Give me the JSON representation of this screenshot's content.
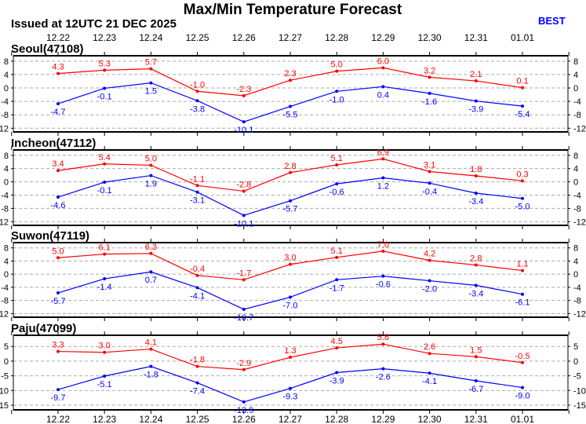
{
  "title": "Max/Min Temperature Forecast",
  "issued": "Issued at 12UTC 21 DEC 2025",
  "model": "BEST",
  "colors": {
    "max": "#ff0000",
    "min": "#0000ff",
    "model": "#0000ff"
  },
  "chart_data": [
    {
      "type": "line",
      "title": "Seoul(47108)",
      "categories": [
        "12.22",
        "12.23",
        "12.24",
        "12.25",
        "12.26",
        "12.27",
        "12.28",
        "12.29",
        "12.30",
        "12.31",
        "01.01"
      ],
      "yticks": [
        "8",
        "4",
        "0",
        "-4",
        "-8",
        "-12"
      ],
      "ylim": [
        -13.1,
        9.6
      ],
      "grid": true,
      "series": [
        {
          "name": "max",
          "values": [
            4.3,
            5.3,
            5.7,
            -1.0,
            -2.3,
            2.3,
            5.0,
            6.0,
            3.2,
            2.1,
            0.1
          ]
        },
        {
          "name": "min",
          "values": [
            -4.7,
            -0.1,
            1.5,
            -3.8,
            -10.1,
            -5.5,
            -1.0,
            0.4,
            -1.6,
            -3.9,
            -5.4
          ]
        }
      ]
    },
    {
      "type": "line",
      "title": "Incheon(47112)",
      "categories": [
        "12.22",
        "12.23",
        "12.24",
        "12.25",
        "12.26",
        "12.27",
        "12.28",
        "12.29",
        "12.30",
        "12.31",
        "01.01"
      ],
      "yticks": [
        "8",
        "4",
        "0",
        "-4",
        "-8",
        "-12"
      ],
      "ylim": [
        -13.1,
        9.6
      ],
      "grid": true,
      "series": [
        {
          "name": "max",
          "values": [
            3.4,
            5.4,
            5.0,
            -1.1,
            -2.8,
            2.8,
            5.1,
            6.9,
            3.1,
            1.8,
            0.3
          ]
        },
        {
          "name": "min",
          "values": [
            -4.6,
            -0.1,
            1.9,
            -3.1,
            -10.1,
            -5.7,
            -0.6,
            1.2,
            -0.4,
            -3.4,
            -5.0
          ]
        }
      ]
    },
    {
      "type": "line",
      "title": "Suwon(47119)",
      "categories": [
        "12.22",
        "12.23",
        "12.24",
        "12.25",
        "12.26",
        "12.27",
        "12.28",
        "12.29",
        "12.30",
        "12.31",
        "01.01"
      ],
      "yticks": [
        "8",
        "4",
        "0",
        "-4",
        "-8",
        "-12"
      ],
      "ylim": [
        -13.1,
        9.6
      ],
      "grid": true,
      "series": [
        {
          "name": "max",
          "values": [
            5.0,
            6.1,
            6.3,
            -0.4,
            -1.7,
            3.0,
            5.1,
            7.0,
            4.2,
            2.8,
            1.1
          ]
        },
        {
          "name": "min",
          "values": [
            -5.7,
            -1.4,
            0.7,
            -4.1,
            -10.7,
            -7.0,
            -1.7,
            -0.6,
            -2.0,
            -3.4,
            -6.1
          ]
        }
      ]
    },
    {
      "type": "line",
      "title": "Paju(47099)",
      "categories": [
        "12.22",
        "12.23",
        "12.24",
        "12.25",
        "12.26",
        "12.27",
        "12.28",
        "12.29",
        "12.30",
        "12.31",
        "01.01"
      ],
      "yticks": [
        "5",
        "0",
        "-5",
        "-10",
        "-15"
      ],
      "ylim": [
        -16.6,
        8.8
      ],
      "grid": true,
      "series": [
        {
          "name": "max",
          "values": [
            3.3,
            3.0,
            4.1,
            -1.8,
            -2.9,
            1.3,
            4.5,
            5.8,
            2.6,
            1.5,
            -0.5
          ]
        },
        {
          "name": "min",
          "values": [
            -9.7,
            -5.1,
            -1.8,
            -7.4,
            -13.9,
            -9.3,
            -3.9,
            -2.6,
            -4.1,
            -6.7,
            -9.0
          ]
        }
      ]
    }
  ]
}
